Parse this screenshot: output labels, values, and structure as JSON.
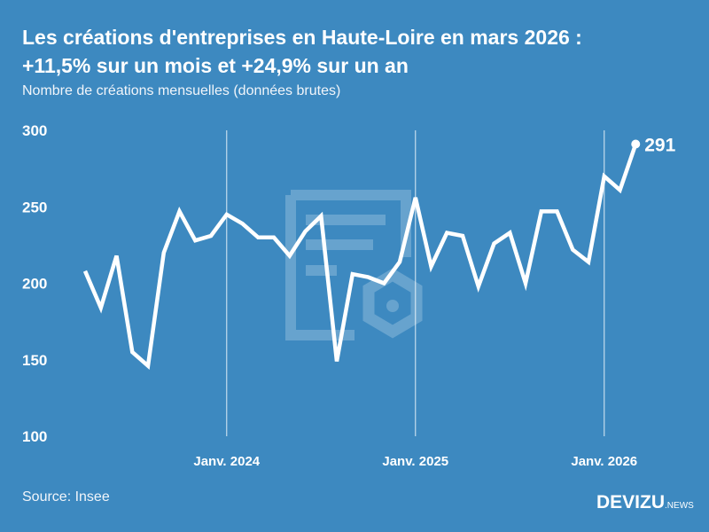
{
  "title_line1": "Les créations d'entreprises en Haute-Loire en mars 2026 :",
  "title_line2": "+11,5% sur un mois et +24,9% sur un an",
  "subtitle": "Nombre de créations mensuelles (données brutes)",
  "source": "Source: Insee",
  "logo": {
    "main": "DEVIZU",
    "suffix": "NEWS"
  },
  "colors": {
    "background": "#3d89c0",
    "line": "#ffffff"
  },
  "chart_data": {
    "type": "line",
    "title": "Les créations d'entreprises en Haute-Loire en mars 2026 : +11,5% sur un mois et +24,9% sur un an",
    "subtitle": "Nombre de créations mensuelles (données brutes)",
    "x_start": "2023-04",
    "x_end": "2026-03",
    "x": [
      "2023-04",
      "2023-05",
      "2023-06",
      "2023-07",
      "2023-08",
      "2023-09",
      "2023-10",
      "2023-11",
      "2023-12",
      "2024-01",
      "2024-02",
      "2024-03",
      "2024-04",
      "2024-05",
      "2024-06",
      "2024-07",
      "2024-08",
      "2024-09",
      "2024-10",
      "2024-11",
      "2024-12",
      "2025-01",
      "2025-02",
      "2025-03",
      "2025-04",
      "2025-05",
      "2025-06",
      "2025-07",
      "2025-08",
      "2025-09",
      "2025-10",
      "2025-11",
      "2025-12",
      "2026-01",
      "2026-02",
      "2026-03"
    ],
    "values": [
      208,
      184,
      218,
      155,
      146,
      220,
      247,
      228,
      231,
      245,
      239,
      230,
      230,
      218,
      234,
      244,
      149,
      206,
      204,
      200,
      214,
      256,
      211,
      233,
      231,
      198,
      226,
      233,
      200,
      247,
      247,
      222,
      214,
      270,
      261,
      291
    ],
    "ylim": [
      100,
      300
    ],
    "yticks": [
      100,
      150,
      200,
      250,
      300
    ],
    "xticks": [
      {
        "date": "2024-01",
        "label": "Janv. 2024"
      },
      {
        "date": "2025-01",
        "label": "Janv. 2025"
      },
      {
        "date": "2026-01",
        "label": "Janv. 2026"
      }
    ],
    "last_label": "291",
    "grid": "vertical lines at January"
  }
}
